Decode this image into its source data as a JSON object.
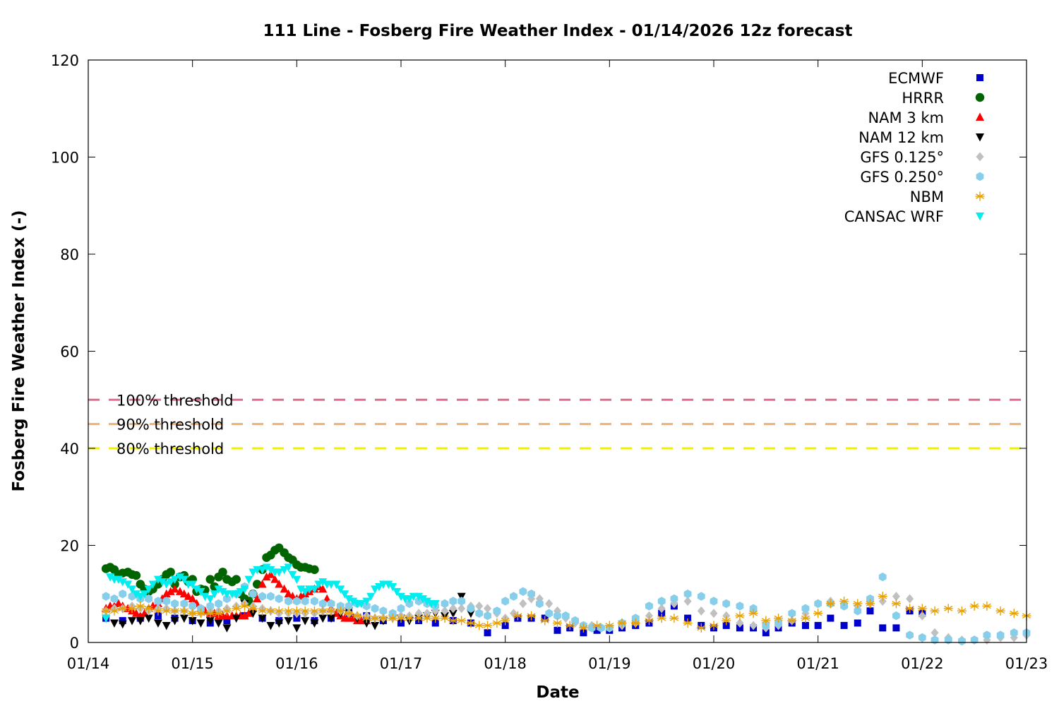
{
  "chart_data": {
    "type": "scatter",
    "title": "111 Line - Fosberg Fire Weather Index - 01/14/2026 12z forecast",
    "xlabel": "Date",
    "ylabel": "Fosberg Fire Weather Index (-)",
    "xlim": [
      0,
      9
    ],
    "ylim": [
      0,
      120
    ],
    "x_tick_labels": [
      "01/14",
      "01/15",
      "01/16",
      "01/17",
      "01/18",
      "01/19",
      "01/20",
      "01/21",
      "01/22",
      "01/23"
    ],
    "y_ticks": [
      0,
      20,
      40,
      60,
      80,
      100,
      120
    ],
    "legend_position": "top-right",
    "thresholds": [
      {
        "label": "100% threshold",
        "value": 50,
        "color": "#e06c8c"
      },
      {
        "label": "90% threshold",
        "value": 45,
        "color": "#f0b070"
      },
      {
        "label": "80% threshold",
        "value": 40,
        "color": "#f0f000"
      }
    ],
    "series": [
      {
        "name": "ECMWF",
        "marker": "square",
        "color": "#0000cc",
        "x": [
          0.17,
          0.33,
          0.5,
          0.67,
          0.83,
          1.0,
          1.17,
          1.33,
          1.5,
          1.67,
          1.83,
          2.0,
          2.17,
          2.33,
          2.5,
          2.67,
          2.83,
          3.0,
          3.17,
          3.33,
          3.5,
          3.67,
          3.83,
          4.0,
          4.12,
          4.25,
          4.38,
          4.5,
          4.62,
          4.75,
          4.88,
          5.0,
          5.12,
          5.25,
          5.38,
          5.5,
          5.62,
          5.75,
          5.88,
          6.0,
          6.12,
          6.25,
          6.38,
          6.5,
          6.62,
          6.75,
          6.88,
          7.0,
          7.12,
          7.25,
          7.38,
          7.5,
          7.62,
          7.75,
          7.88,
          8.0
        ],
        "y": [
          5,
          4.5,
          5,
          5.5,
          5,
          4.5,
          4,
          4.5,
          5.5,
          5,
          4.5,
          5,
          4.5,
          5,
          6,
          5.5,
          4.5,
          4,
          4.5,
          4,
          4.5,
          4,
          2,
          3.5,
          5,
          5,
          5,
          2.5,
          3,
          2,
          2.5,
          2.5,
          3,
          3.5,
          4,
          6,
          7.5,
          5,
          3.5,
          3,
          3.5,
          3,
          3,
          2,
          3,
          4,
          3.5,
          3.5,
          5,
          3.5,
          4,
          6.5,
          3,
          3,
          6.5,
          6
        ]
      },
      {
        "name": "HRRR",
        "marker": "circle",
        "color": "#006400",
        "x": [
          0.17,
          0.21,
          0.25,
          0.29,
          0.33,
          0.38,
          0.42,
          0.46,
          0.5,
          0.54,
          0.58,
          0.62,
          0.67,
          0.71,
          0.75,
          0.79,
          0.83,
          0.88,
          0.92,
          0.96,
          1.0,
          1.04,
          1.08,
          1.12,
          1.17,
          1.21,
          1.25,
          1.29,
          1.33,
          1.38,
          1.42,
          1.46,
          1.5,
          1.54,
          1.58,
          1.62,
          1.67,
          1.71,
          1.75,
          1.79,
          1.83,
          1.88,
          1.92,
          1.96,
          2.0,
          2.04,
          2.08,
          2.12,
          2.17
        ],
        "y": [
          15.2,
          15.5,
          15,
          14,
          14.3,
          14.5,
          14,
          13.8,
          12,
          11,
          10.5,
          11,
          12,
          13,
          14,
          14.5,
          12,
          13.5,
          13.8,
          12.5,
          13,
          10.5,
          11,
          10.8,
          13,
          11.5,
          13.5,
          14.5,
          13,
          12.5,
          13,
          10,
          9,
          8.5,
          10,
          12,
          15,
          17.5,
          18,
          19,
          19.5,
          18.5,
          17.5,
          17,
          16,
          15.5,
          15.5,
          15.2,
          15
        ]
      },
      {
        "name": "NAM 3 km",
        "marker": "triangle-up",
        "color": "#ff0000",
        "x": [
          0.17,
          0.21,
          0.25,
          0.29,
          0.33,
          0.38,
          0.42,
          0.46,
          0.5,
          0.54,
          0.58,
          0.62,
          0.67,
          0.71,
          0.75,
          0.79,
          0.83,
          0.88,
          0.92,
          0.96,
          1.0,
          1.04,
          1.08,
          1.12,
          1.17,
          1.21,
          1.25,
          1.29,
          1.33,
          1.38,
          1.42,
          1.46,
          1.5,
          1.54,
          1.58,
          1.62,
          1.67,
          1.71,
          1.75,
          1.79,
          1.83,
          1.88,
          1.92,
          1.96,
          2.0,
          2.04,
          2.08,
          2.12,
          2.17,
          2.21,
          2.25,
          2.29,
          2.33,
          2.38,
          2.42,
          2.46,
          2.5,
          2.54,
          2.58,
          2.62,
          2.67
        ],
        "y": [
          7,
          7.5,
          7.5,
          8,
          7.5,
          7,
          6.5,
          6,
          5.5,
          6,
          7,
          7.5,
          8,
          9,
          10,
          10.5,
          11,
          10.5,
          10,
          9.5,
          9,
          8,
          7,
          6.5,
          6,
          6,
          5.5,
          5.5,
          5.5,
          5.5,
          5.5,
          5.5,
          5.5,
          6,
          7,
          9,
          12,
          13.5,
          14,
          13,
          12,
          11,
          10,
          9.5,
          9,
          9.5,
          10,
          10.5,
          11,
          11.5,
          11,
          9,
          7,
          6,
          5.5,
          5,
          5,
          5,
          4.5,
          4.5,
          4.5
        ]
      },
      {
        "name": "NAM 12 km",
        "marker": "triangle-down",
        "color": "#000000",
        "x": [
          0.17,
          0.25,
          0.33,
          0.42,
          0.5,
          0.58,
          0.67,
          0.75,
          0.83,
          0.92,
          1.0,
          1.08,
          1.17,
          1.25,
          1.33,
          1.42,
          1.5,
          1.58,
          1.67,
          1.75,
          1.83,
          1.92,
          2.0,
          2.08,
          2.17,
          2.25,
          2.33,
          2.42,
          2.5,
          2.58,
          2.67,
          2.75,
          2.83,
          2.92,
          3.0,
          3.08,
          3.17,
          3.25,
          3.33,
          3.42,
          3.5,
          3.58,
          3.67
        ],
        "y": [
          5,
          4,
          3.8,
          4.5,
          4.5,
          5,
          4,
          3.5,
          4.5,
          5,
          4.5,
          4,
          4.5,
          4,
          3,
          5,
          8,
          6,
          5,
          3.5,
          4,
          4.5,
          3,
          4.5,
          4,
          5,
          5,
          6,
          6.5,
          5,
          4,
          3.5,
          4.5,
          5,
          5,
          4.5,
          5,
          5.5,
          6,
          5.5,
          6,
          9.5,
          6
        ]
      },
      {
        "name": "GFS 0.125°",
        "marker": "diamond",
        "color": "#c0c0c0",
        "x": [
          0.17,
          0.25,
          0.33,
          0.42,
          0.5,
          0.58,
          0.67,
          0.75,
          0.83,
          0.92,
          1.0,
          1.08,
          1.17,
          1.25,
          1.33,
          1.42,
          1.5,
          1.58,
          1.67,
          1.75,
          1.83,
          1.92,
          2.0,
          2.08,
          2.17,
          2.25,
          2.33,
          2.42,
          2.5,
          2.58,
          2.67,
          2.75,
          2.83,
          2.92,
          3.0,
          3.08,
          3.17,
          3.25,
          3.33,
          3.42,
          3.5,
          3.58,
          3.67,
          3.75,
          3.83,
          3.92,
          4.0,
          4.08,
          4.17,
          4.25,
          4.33,
          4.42,
          4.5,
          4.58,
          4.67,
          4.75,
          4.83,
          4.92,
          5.0,
          5.12,
          5.25,
          5.38,
          5.5,
          5.62,
          5.75,
          5.88,
          6.0,
          6.12,
          6.25,
          6.38,
          6.5,
          6.62,
          6.75,
          6.88,
          7.0,
          7.12,
          7.25,
          7.38,
          7.5,
          7.62,
          7.75,
          7.88,
          8.0,
          8.12,
          8.25,
          8.38,
          8.5,
          8.62,
          8.75,
          8.88,
          9.0
        ],
        "y": [
          6.5,
          7,
          7,
          7.5,
          7,
          6.5,
          7,
          7,
          6.5,
          6.5,
          6,
          6,
          6.5,
          6.5,
          7,
          7.5,
          8,
          7.5,
          7,
          6.5,
          6,
          6,
          6,
          6,
          6,
          6.5,
          6.5,
          6.5,
          6,
          5.5,
          5.5,
          5,
          5,
          5,
          5.5,
          5.5,
          6,
          6,
          6.5,
          6.5,
          7,
          7,
          7.5,
          7.5,
          7,
          6,
          5,
          6,
          8,
          9,
          9,
          8,
          6.5,
          5,
          4,
          3.5,
          3.5,
          3,
          3,
          3.5,
          4,
          5.5,
          7,
          8,
          8.5,
          6.5,
          6,
          5.5,
          4,
          3.5,
          3,
          3.5,
          4.5,
          6,
          8,
          8.5,
          8,
          7.5,
          8,
          8.5,
          9.5,
          9,
          5.5,
          2,
          1,
          0.5,
          0.5,
          0.5,
          1,
          1,
          1.5
        ]
      },
      {
        "name": "GFS 0.250°",
        "marker": "hexagon",
        "color": "#87ceeb",
        "x": [
          0.17,
          0.25,
          0.33,
          0.42,
          0.5,
          0.58,
          0.67,
          0.75,
          0.83,
          0.92,
          1.0,
          1.08,
          1.17,
          1.25,
          1.33,
          1.42,
          1.5,
          1.58,
          1.67,
          1.75,
          1.83,
          1.92,
          2.0,
          2.08,
          2.17,
          2.25,
          2.33,
          2.42,
          2.5,
          2.58,
          2.67,
          2.75,
          2.83,
          2.92,
          3.0,
          3.08,
          3.17,
          3.25,
          3.33,
          3.42,
          3.5,
          3.58,
          3.67,
          3.75,
          3.83,
          3.92,
          4.0,
          4.08,
          4.17,
          4.25,
          4.33,
          4.42,
          4.5,
          4.58,
          4.67,
          4.75,
          4.83,
          4.92,
          5.0,
          5.12,
          5.25,
          5.38,
          5.5,
          5.62,
          5.75,
          5.88,
          6.0,
          6.12,
          6.25,
          6.38,
          6.5,
          6.62,
          6.75,
          6.88,
          7.0,
          7.12,
          7.25,
          7.38,
          7.5,
          7.62,
          7.75,
          7.88,
          8.0,
          8.12,
          8.25,
          8.38,
          8.5,
          8.62,
          8.75,
          8.88,
          9.0
        ],
        "y": [
          9.5,
          9,
          10,
          9.5,
          9,
          9,
          8.5,
          8.5,
          8,
          8,
          7.5,
          7,
          7.5,
          8,
          9,
          10,
          11.5,
          10,
          9.5,
          9.5,
          9,
          8.5,
          8.5,
          8.5,
          8.5,
          8,
          8,
          7.5,
          7.5,
          8,
          7.5,
          7,
          6.5,
          6,
          7,
          8,
          8.5,
          8,
          7.5,
          8,
          8.5,
          8.5,
          7,
          6,
          5.5,
          6.5,
          8.5,
          9.5,
          10.5,
          10,
          8,
          6,
          5.5,
          5.5,
          4.5,
          3.5,
          3,
          3,
          3,
          4,
          5,
          7.5,
          8.5,
          9,
          10,
          9.5,
          8.5,
          8,
          7.5,
          7,
          3.5,
          4,
          6,
          7,
          8,
          8,
          7.5,
          6.5,
          9,
          13.5,
          5.5,
          1.5,
          1,
          0.5,
          0.5,
          0.3,
          0.5,
          1.5,
          1.5,
          2,
          2
        ]
      },
      {
        "name": "NBM",
        "marker": "asterisk",
        "color": "#e8a000",
        "x": [
          0.17,
          0.25,
          0.33,
          0.42,
          0.5,
          0.58,
          0.67,
          0.75,
          0.83,
          0.92,
          1.0,
          1.08,
          1.17,
          1.25,
          1.33,
          1.42,
          1.5,
          1.58,
          1.67,
          1.75,
          1.83,
          1.92,
          2.0,
          2.08,
          2.17,
          2.25,
          2.33,
          2.42,
          2.5,
          2.58,
          2.67,
          2.75,
          2.83,
          2.92,
          3.0,
          3.08,
          3.17,
          3.25,
          3.33,
          3.42,
          3.5,
          3.58,
          3.67,
          3.75,
          3.83,
          3.92,
          4.0,
          4.12,
          4.25,
          4.38,
          4.5,
          4.62,
          4.75,
          4.88,
          5.0,
          5.12,
          5.25,
          5.38,
          5.5,
          5.62,
          5.75,
          5.88,
          6.0,
          6.12,
          6.25,
          6.38,
          6.5,
          6.62,
          6.75,
          6.88,
          7.0,
          7.12,
          7.25,
          7.38,
          7.5,
          7.62,
          7.75,
          7.88,
          8.0,
          8.12,
          8.25,
          8.38,
          8.5,
          8.62,
          8.75,
          8.88,
          9.0
        ],
        "y": [
          6.5,
          6.5,
          7,
          7,
          7.5,
          7,
          6.5,
          6.5,
          6.5,
          6.5,
          6,
          6,
          6,
          6,
          6.5,
          7,
          7.5,
          7,
          6.5,
          6.5,
          6.5,
          6.5,
          6.5,
          6.5,
          6.5,
          6.5,
          6.5,
          6.5,
          6,
          5.5,
          5,
          5,
          5,
          5,
          5,
          5,
          5,
          5,
          5,
          5,
          4.5,
          4.5,
          4,
          3.5,
          3.5,
          4,
          4.5,
          5.5,
          5.5,
          4.5,
          4,
          3.5,
          3,
          3.5,
          3.5,
          4,
          4,
          4.5,
          5,
          5,
          4,
          3,
          3.5,
          4.5,
          5.5,
          6,
          4.5,
          5,
          4.5,
          5,
          6,
          8,
          8.5,
          8,
          8,
          9.5,
          8,
          7,
          7,
          6.5,
          7,
          6.5,
          7.5,
          7.5,
          6.5,
          6,
          5.5
        ]
      },
      {
        "name": "CANSAC WRF",
        "marker": "triangle-down",
        "color": "#00eeee",
        "x": [
          0.17,
          0.21,
          0.25,
          0.29,
          0.33,
          0.38,
          0.42,
          0.46,
          0.5,
          0.54,
          0.58,
          0.62,
          0.67,
          0.71,
          0.75,
          0.79,
          0.83,
          0.88,
          0.92,
          0.96,
          1.0,
          1.04,
          1.08,
          1.12,
          1.17,
          1.21,
          1.25,
          1.29,
          1.33,
          1.38,
          1.42,
          1.46,
          1.5,
          1.54,
          1.58,
          1.62,
          1.67,
          1.71,
          1.75,
          1.79,
          1.83,
          1.88,
          1.92,
          1.96,
          2.0,
          2.04,
          2.08,
          2.12,
          2.17,
          2.21,
          2.25,
          2.29,
          2.33,
          2.38,
          2.42,
          2.46,
          2.5,
          2.54,
          2.58,
          2.62,
          2.67,
          2.71,
          2.75,
          2.79,
          2.83,
          2.88,
          2.92,
          2.96,
          3.0,
          3.04,
          3.08,
          3.12,
          3.17,
          3.21,
          3.25,
          3.29,
          3.33
        ],
        "y": [
          5,
          13.5,
          13,
          13,
          12.5,
          12,
          11,
          10,
          9.5,
          10,
          11,
          12,
          13,
          12.5,
          12,
          12.5,
          13,
          13.5,
          13,
          12,
          12,
          11,
          10.5,
          9.5,
          9,
          10,
          11,
          10.5,
          10,
          10,
          10,
          10.5,
          11,
          13,
          14.5,
          15,
          15,
          15.5,
          15,
          14.5,
          14.5,
          15,
          15.5,
          14,
          13,
          11,
          10.5,
          11,
          11,
          12,
          12.5,
          12,
          12,
          12,
          11,
          10,
          9,
          8.5,
          8,
          8,
          8.5,
          9.5,
          11,
          11.5,
          12,
          12,
          11.5,
          10.5,
          9.5,
          9,
          9,
          9.5,
          9.5,
          9,
          8.5,
          8,
          8
        ]
      }
    ]
  }
}
